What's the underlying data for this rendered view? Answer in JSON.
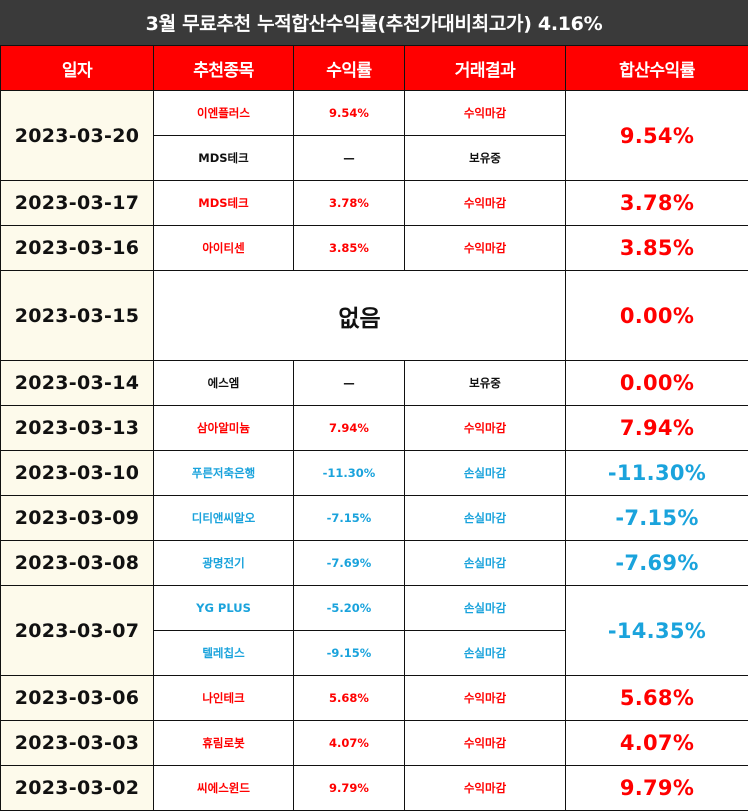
{
  "title": "3월 무료추천 누적합산수익률(추천가대비최고가) 4.16%",
  "headers": [
    "일자",
    "추천종목",
    "수익률",
    "거래결과",
    "합산수익률"
  ],
  "colors": {
    "profit": "#ff0000",
    "loss": "#1aa3dc",
    "neutral": "#111111",
    "header_bg": "#ff0000",
    "title_bg": "#3a3a3a",
    "date_bg": "#fdfaeb"
  },
  "rows": [
    {
      "date": "2023-03-20",
      "total": "9.54%",
      "total_color": "red",
      "items": [
        {
          "name": "이엔플러스",
          "rate": "9.54%",
          "result": "수익마감",
          "color": "red"
        },
        {
          "name": "MDS테크",
          "rate": "—",
          "result": "보유중",
          "color": "black"
        }
      ]
    },
    {
      "date": "2023-03-17",
      "total": "3.78%",
      "total_color": "red",
      "items": [
        {
          "name": "MDS테크",
          "rate": "3.78%",
          "result": "수익마감",
          "color": "red"
        }
      ]
    },
    {
      "date": "2023-03-16",
      "total": "3.85%",
      "total_color": "red",
      "items": [
        {
          "name": "아이티센",
          "rate": "3.85%",
          "result": "수익마감",
          "color": "red"
        }
      ]
    },
    {
      "date": "2023-03-15",
      "total": "0.00%",
      "total_color": "red",
      "none_text": "없음",
      "items": []
    },
    {
      "date": "2023-03-14",
      "total": "0.00%",
      "total_color": "red",
      "items": [
        {
          "name": "에스엠",
          "rate": "—",
          "result": "보유중",
          "color": "black"
        }
      ]
    },
    {
      "date": "2023-03-13",
      "total": "7.94%",
      "total_color": "red",
      "items": [
        {
          "name": "삼아알미늄",
          "rate": "7.94%",
          "result": "수익마감",
          "color": "red"
        }
      ]
    },
    {
      "date": "2023-03-10",
      "total": "-11.30%",
      "total_color": "blue",
      "items": [
        {
          "name": "푸른저축은행",
          "rate": "-11.30%",
          "result": "손실마감",
          "color": "blue"
        }
      ]
    },
    {
      "date": "2023-03-09",
      "total": "-7.15%",
      "total_color": "blue",
      "items": [
        {
          "name": "디티앤씨알오",
          "rate": "-7.15%",
          "result": "손실마감",
          "color": "blue"
        }
      ]
    },
    {
      "date": "2023-03-08",
      "total": "-7.69%",
      "total_color": "blue",
      "items": [
        {
          "name": "광명전기",
          "rate": "-7.69%",
          "result": "손실마감",
          "color": "blue"
        }
      ]
    },
    {
      "date": "2023-03-07",
      "total": "-14.35%",
      "total_color": "blue",
      "items": [
        {
          "name": "YG PLUS",
          "rate": "-5.20%",
          "result": "손실마감",
          "color": "blue"
        },
        {
          "name": "텔레칩스",
          "rate": "-9.15%",
          "result": "손실마감",
          "color": "blue"
        }
      ]
    },
    {
      "date": "2023-03-06",
      "total": "5.68%",
      "total_color": "red",
      "items": [
        {
          "name": "나인테크",
          "rate": "5.68%",
          "result": "수익마감",
          "color": "red"
        }
      ]
    },
    {
      "date": "2023-03-03",
      "total": "4.07%",
      "total_color": "red",
      "items": [
        {
          "name": "휴림로봇",
          "rate": "4.07%",
          "result": "수익마감",
          "color": "red"
        }
      ]
    },
    {
      "date": "2023-03-02",
      "total": "9.79%",
      "total_color": "red",
      "items": [
        {
          "name": "씨에스윈드",
          "rate": "9.79%",
          "result": "수익마감",
          "color": "red"
        }
      ]
    }
  ]
}
